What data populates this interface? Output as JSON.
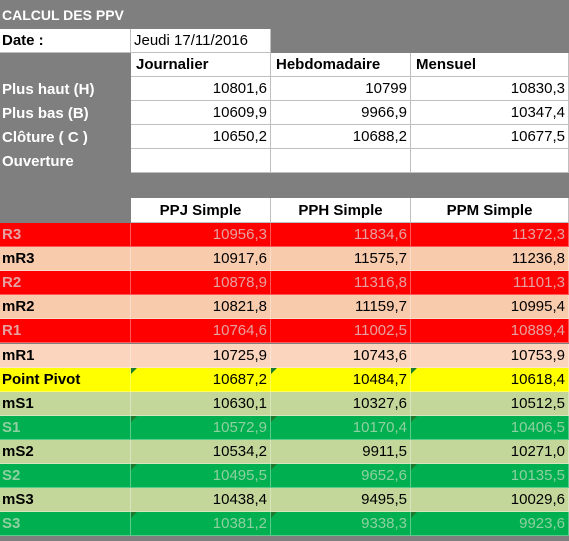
{
  "title": "CALCUL DES PPV",
  "date_label": "Date :",
  "date_value": "Jeudi 17/11/2016",
  "period_headers": [
    "Journalier",
    "Hebdomadaire",
    "Mensuel"
  ],
  "inputs": [
    {
      "label": "Plus haut (H)",
      "values": [
        "10801,6",
        "10799",
        "10830,3"
      ]
    },
    {
      "label": "Plus bas (B)",
      "values": [
        "10609,9",
        "9966,9",
        "10347,4"
      ]
    },
    {
      "label": "Clôture ( C )",
      "values": [
        "10650,2",
        "10688,2",
        "10677,5"
      ]
    },
    {
      "label": "Ouverture",
      "values": [
        "",
        "",
        ""
      ]
    }
  ],
  "pivot_headers": [
    "PPJ Simple",
    "PPH Simple",
    "PPM Simple"
  ],
  "colors": {
    "red": "#ff0000",
    "salmon": "#f8cbad",
    "peach": "#fbd5bd",
    "yellow": "#ffff00",
    "light_green": "#c4d79b",
    "green": "#00b050"
  },
  "pivots": [
    {
      "label": "R3",
      "color": "#ff0000",
      "text": "#e6a0a0",
      "values": [
        "10956,3",
        "11834,6",
        "11372,3"
      ]
    },
    {
      "label": "mR3",
      "color": "#f8cbad",
      "text": "#000000",
      "values": [
        "10917,6",
        "11575,7",
        "11236,8"
      ]
    },
    {
      "label": "R2",
      "color": "#ff0000",
      "text": "#e6a0a0",
      "values": [
        "10878,9",
        "11316,8",
        "11101,3"
      ]
    },
    {
      "label": "mR2",
      "color": "#f8cbad",
      "text": "#000000",
      "values": [
        "10821,8",
        "11159,7",
        "10995,4"
      ]
    },
    {
      "label": "R1",
      "color": "#ff0000",
      "text": "#e6a0a0",
      "values": [
        "10764,6",
        "11002,5",
        "10889,4"
      ]
    },
    {
      "label": "mR1",
      "color": "#fbd5bd",
      "text": "#000000",
      "values": [
        "10725,9",
        "10743,6",
        "10753,9"
      ]
    },
    {
      "label": "Point Pivot",
      "color": "#ffff00",
      "text": "#000000",
      "values": [
        "10687,2",
        "10484,7",
        "10618,4"
      ]
    },
    {
      "label": "mS1",
      "color": "#c4d79b",
      "text": "#000000",
      "values": [
        "10630,1",
        "10327,6",
        "10512,5"
      ]
    },
    {
      "label": "S1",
      "color": "#00b050",
      "text": "#8fd0a0",
      "values": [
        "10572,9",
        "10170,4",
        "10406,5"
      ]
    },
    {
      "label": "mS2",
      "color": "#c4d79b",
      "text": "#000000",
      "values": [
        "10534,2",
        "9911,5",
        "10271,0"
      ]
    },
    {
      "label": "S2",
      "color": "#00b050",
      "text": "#8fd0a0",
      "values": [
        "10495,5",
        "9652,6",
        "10135,5"
      ]
    },
    {
      "label": "mS3",
      "color": "#c4d79b",
      "text": "#000000",
      "values": [
        "10438,4",
        "9495,5",
        "10029,6"
      ]
    },
    {
      "label": "S3",
      "color": "#00b050",
      "text": "#8fd0a0",
      "values": [
        "10381,2",
        "9338,3",
        "9923,6"
      ]
    }
  ]
}
